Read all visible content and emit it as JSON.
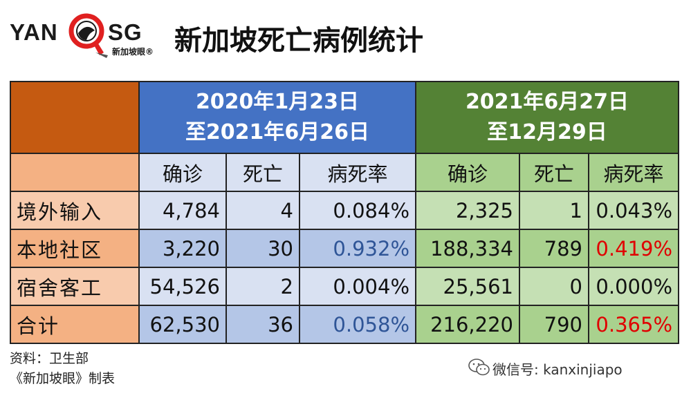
{
  "logo": {
    "left": "YAN",
    "right": "SG",
    "sub": "新加坡眼®"
  },
  "title": "新加坡死亡病例统计",
  "periods": [
    {
      "line1": "2020年1月23日",
      "line2": "至2021年6月26日"
    },
    {
      "line1": "2021年6月27日",
      "line2": "至12月29日"
    }
  ],
  "columns": [
    "确诊",
    "死亡",
    "病死率",
    "确诊",
    "死亡",
    "病死率"
  ],
  "rows": [
    {
      "label": "境外输入",
      "p1": [
        "4,784",
        "4",
        "0.084%"
      ],
      "p2": [
        "2,325",
        "1",
        "0.043%"
      ]
    },
    {
      "label": "本地社区",
      "p1": [
        "3,220",
        "30",
        "0.932%"
      ],
      "p2": [
        "188,334",
        "789",
        "0.419%"
      ]
    },
    {
      "label": "宿舍客工",
      "p1": [
        "54,526",
        "2",
        "0.004%"
      ],
      "p2": [
        "25,561",
        "0",
        "0.000%"
      ]
    },
    {
      "label": "合计",
      "p1": [
        "62,530",
        "36",
        "0.058%"
      ],
      "p2": [
        "216,220",
        "790",
        "0.365%"
      ]
    }
  ],
  "colors": {
    "highlight_blue": "#2f5597",
    "highlight_red": "#e00000"
  },
  "footer": {
    "source": "资料：卫生部",
    "credit": "《新加坡眼》制表"
  },
  "wechat": {
    "icon": "wechat-icon",
    "text": "微信号: kanxinjiapo"
  }
}
